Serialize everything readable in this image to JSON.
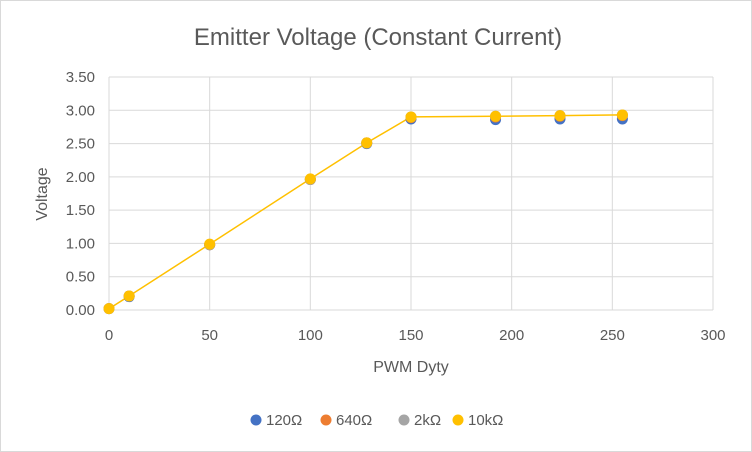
{
  "chart_data": {
    "type": "scatter",
    "title": "Emitter Voltage (Constant Current)",
    "xlabel": "PWM Dyty",
    "ylabel": "Voltage",
    "xlim": [
      0,
      300
    ],
    "ylim": [
      0,
      3.5
    ],
    "x_ticks": [
      "0",
      "50",
      "100",
      "150",
      "200",
      "250",
      "300"
    ],
    "y_ticks": [
      "0.00",
      "0.50",
      "1.00",
      "1.50",
      "2.00",
      "2.50",
      "3.00",
      "3.50"
    ],
    "grid": true,
    "legend_position": "bottom",
    "series": [
      {
        "name": "120Ω",
        "color": "#4472C4",
        "x": [
          0,
          10,
          50,
          100,
          128,
          150,
          192,
          224,
          255
        ],
        "y": [
          0.02,
          0.2,
          0.98,
          1.96,
          2.5,
          2.87,
          2.86,
          2.87,
          2.87
        ]
      },
      {
        "name": "640Ω",
        "color": "#ED7D31",
        "x": [
          0,
          10,
          50,
          100,
          128,
          150,
          192,
          224,
          255
        ],
        "y": [
          0.02,
          0.21,
          0.98,
          1.96,
          2.51,
          2.89,
          2.9,
          2.91,
          2.92
        ]
      },
      {
        "name": "2kΩ",
        "color": "#A5A5A5",
        "x": [
          0,
          10,
          50,
          100,
          128,
          150,
          192,
          224,
          255
        ],
        "y": [
          0.02,
          0.21,
          0.98,
          1.96,
          2.51,
          2.9,
          2.91,
          2.92,
          2.93
        ]
      },
      {
        "name": "10kΩ",
        "color": "#FFC000",
        "x": [
          0,
          10,
          50,
          100,
          128,
          150,
          192,
          224,
          255
        ],
        "y": [
          0.02,
          0.21,
          0.99,
          1.97,
          2.51,
          2.9,
          2.91,
          2.92,
          2.93
        ],
        "line": true
      }
    ]
  }
}
